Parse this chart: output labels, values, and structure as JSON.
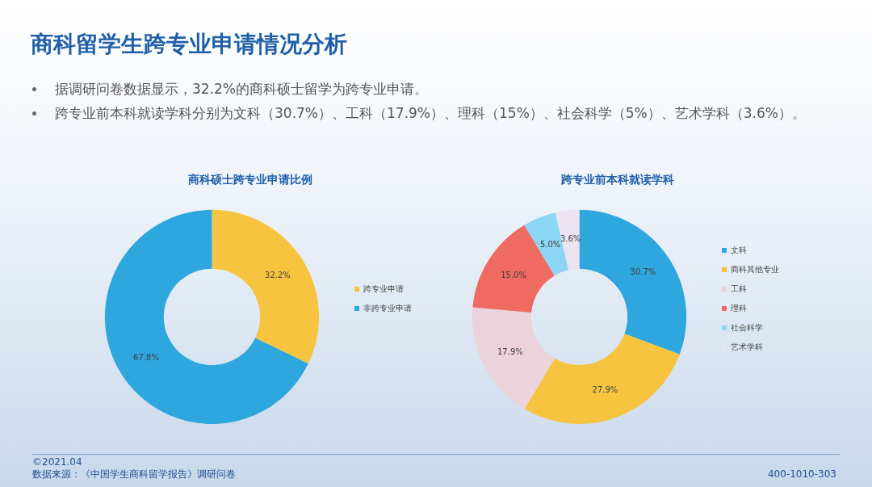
{
  "chart_data": [
    {
      "type": "other",
      "title": "商科留学生跨专业申请情况分析",
      "annotations": [
        "据调研问卷数据显示，32.2%的商科硕士留学为跨专业申请。",
        "跨专业前本科就读学科分别为文科（30.7%）、工科（17.9%）、理科（15%）、社会科学（5%）、艺术学科（3.6%）。",
        "©2021.04",
        "数据来源：《中国学生商科留学报告》调研问卷",
        "400-1010-303"
      ]
    },
    {
      "type": "donut",
      "title": "商科硕士跨专业申请比例",
      "categories": [
        "跨专业申请",
        "非跨专业申请"
      ],
      "values": [
        32.2,
        67.8
      ],
      "colors": [
        "#f6c43f",
        "#2ea6de"
      ],
      "value_labels": [
        "32.2%",
        "67.8%"
      ],
      "legend": "right"
    },
    {
      "type": "donut",
      "title": "跨专业前本科就读学科",
      "categories": [
        "文科",
        "商科其他专业",
        "工科",
        "理科",
        "社会科学",
        "艺术学科"
      ],
      "values": [
        30.7,
        27.9,
        17.9,
        15.0,
        5.0,
        3.6
      ],
      "colors": [
        "#2ea6de",
        "#f6c43f",
        "#ecd2db",
        "#ef6a60",
        "#8ad6f4",
        "#ebe3f0"
      ],
      "value_labels": [
        "30.7%",
        "27.9%",
        "17.9%",
        "15.0%",
        "5.0%",
        "3.6%"
      ],
      "legend": "right"
    }
  ]
}
